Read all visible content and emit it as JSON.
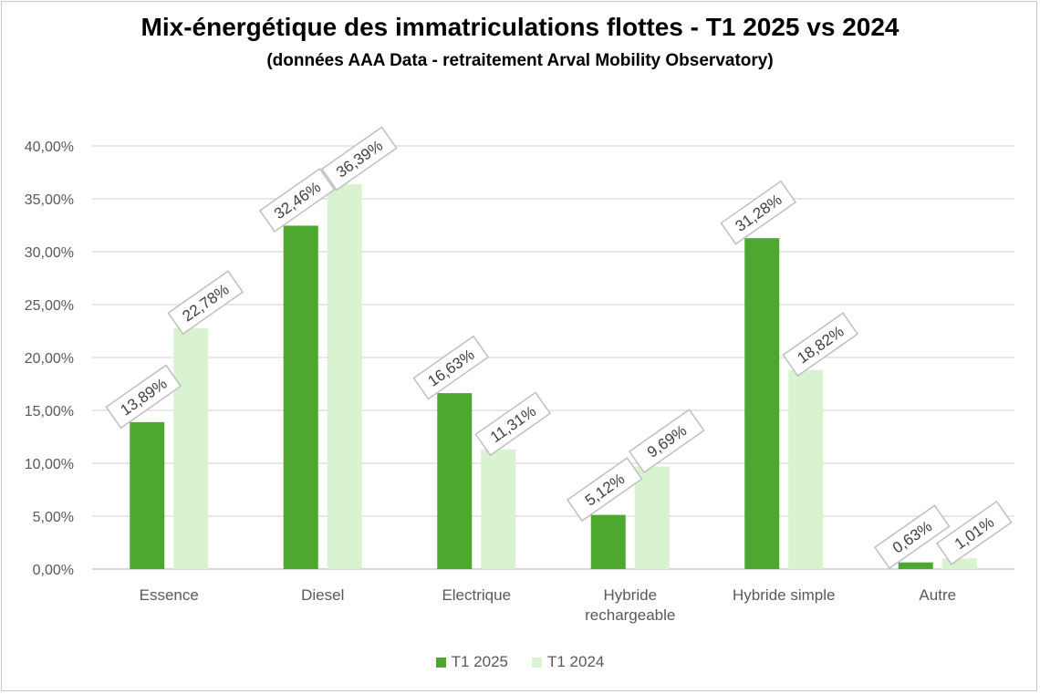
{
  "chart_data": {
    "type": "bar",
    "title": "Mix-énergétique des immatriculations flottes - T1 2025 vs 2024",
    "subtitle": "(données AAA Data - retraitement Arval Mobility Observatory)",
    "categories": [
      [
        "Essence"
      ],
      [
        "Diesel"
      ],
      [
        "Electrique"
      ],
      [
        "Hybride",
        "rechargeable"
      ],
      [
        "Hybride simple"
      ],
      [
        "Autre"
      ]
    ],
    "series": [
      {
        "name": "T1 2025",
        "color": "#4ea72e",
        "values": [
          13.89,
          32.46,
          16.63,
          5.12,
          31.28,
          0.63
        ],
        "labels": [
          "13,89%",
          "32,46%",
          "16,63%",
          "5,12%",
          "31,28%",
          "0,63%"
        ]
      },
      {
        "name": "T1 2024",
        "color": "#d9f2d0",
        "values": [
          22.78,
          36.39,
          11.31,
          9.69,
          18.82,
          1.01
        ],
        "labels": [
          "22,78%",
          "36,39%",
          "11,31%",
          "9,69%",
          "18,82%",
          "1,01%"
        ]
      }
    ],
    "ylim": [
      0,
      40
    ],
    "yticks": [
      "0,00%",
      "5,00%",
      "10,00%",
      "15,00%",
      "20,00%",
      "25,00%",
      "30,00%",
      "35,00%",
      "40,00%"
    ],
    "grid": true,
    "legend_position": "bottom"
  }
}
